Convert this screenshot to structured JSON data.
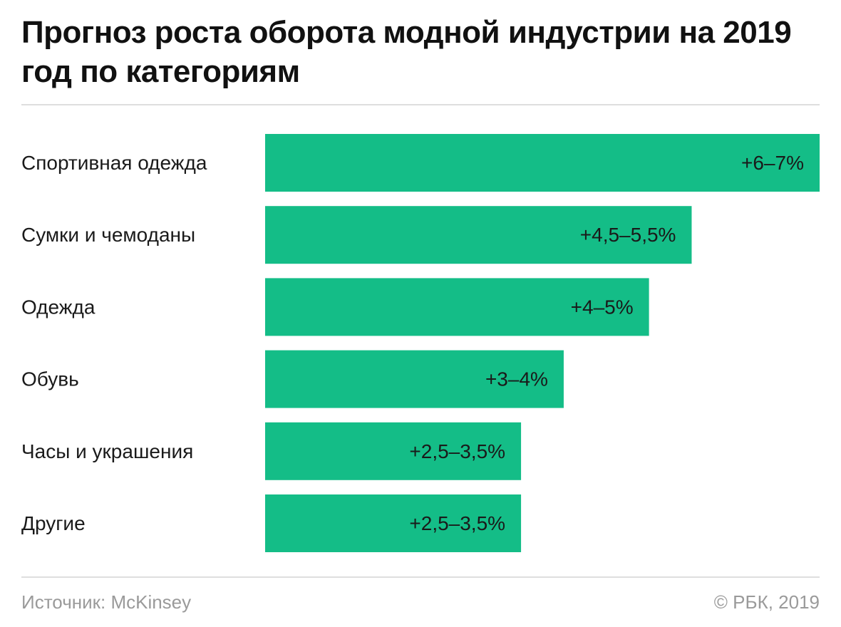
{
  "title": "Прогноз роста оборота модной индустрии на 2019 год по категориям",
  "colors": {
    "bar": "#14bd87",
    "bar_label": "#1a1a1a",
    "category_label": "#1a1a1a",
    "footer": "#9a9a9a"
  },
  "chart_data": {
    "type": "bar",
    "orientation": "horizontal",
    "title": "Прогноз роста оборота модной индустрии на 2019 год по категориям",
    "categories": [
      "Спортивная одежда",
      "Сумки и чемоданы",
      "Одежда",
      "Обувь",
      "Часы и украшения",
      "Другие"
    ],
    "ranges": [
      [
        6,
        7
      ],
      [
        4.5,
        5.5
      ],
      [
        4,
        5
      ],
      [
        3,
        4
      ],
      [
        2.5,
        3.5
      ],
      [
        2.5,
        3.5
      ]
    ],
    "values": [
      6.5,
      5.0,
      4.5,
      3.5,
      3.0,
      3.0
    ],
    "data_labels": [
      "+6–7%",
      "+4,5–5,5%",
      "+4–5%",
      "+3–4%",
      "+2,5–3,5%",
      "+2,5–3,5%"
    ],
    "unit": "%",
    "grid": false,
    "legend": "none"
  },
  "footer": {
    "source": "Источник: McKinsey",
    "copyright": "© РБК, 2019"
  }
}
